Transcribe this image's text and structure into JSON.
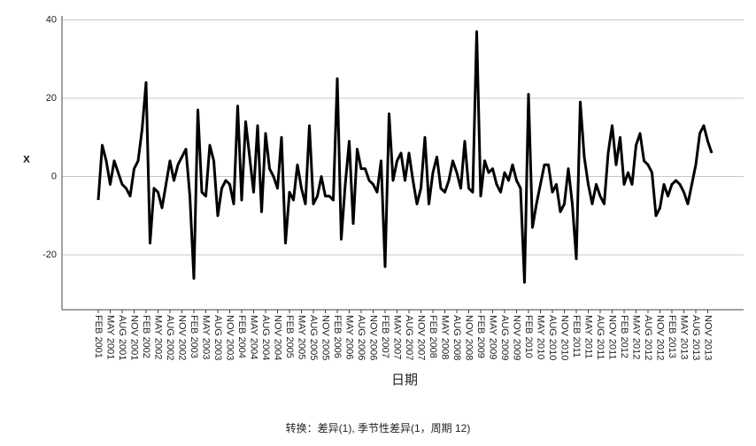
{
  "chart_data": {
    "type": "line",
    "ylabel": "x",
    "xlabel": "日期",
    "note": "转换：差异(1), 季节性差异(1，周期 12)",
    "color": "#000000",
    "grid": true,
    "ylim": [
      -34,
      41
    ],
    "yticks": [
      -20,
      0,
      20,
      40
    ],
    "categories": [
      "FEB 2001",
      null,
      null,
      "MAY 2001",
      null,
      null,
      "AUG 2001",
      null,
      null,
      "NOV 2001",
      null,
      null,
      "FEB 2002",
      null,
      null,
      "MAY 2002",
      null,
      null,
      "AUG 2002",
      null,
      null,
      "NOV 2002",
      null,
      null,
      "FEB 2003",
      null,
      null,
      "MAY 2003",
      null,
      null,
      "AUG 2003",
      null,
      null,
      "NOV 2003",
      null,
      null,
      "FEB 2004",
      null,
      null,
      "MAY 2004",
      null,
      null,
      "AUG 2004",
      null,
      null,
      "NOV 2004",
      null,
      null,
      "FEB 2005",
      null,
      null,
      "MAY 2005",
      null,
      null,
      "AUG 2005",
      null,
      null,
      "NOV 2005",
      null,
      null,
      "FEB 2006",
      null,
      null,
      "MAY 2006",
      null,
      null,
      "AUG 2006",
      null,
      null,
      "NOV 2006",
      null,
      null,
      "FEB 2007",
      null,
      null,
      "MAY 2007",
      null,
      null,
      "AUG 2007",
      null,
      null,
      "NOV 2007",
      null,
      null,
      "FEB 2008",
      null,
      null,
      "MAY 2008",
      null,
      null,
      "AUG 2008",
      null,
      null,
      "NOV 2008",
      null,
      null,
      "FEB 2009",
      null,
      null,
      "MAY 2009",
      null,
      null,
      "AUG 2009",
      null,
      null,
      "NOV 2009",
      null,
      null,
      "FEB 2010",
      null,
      null,
      "MAY 2010",
      null,
      null,
      "AUG 2010",
      null,
      null,
      "NOV 2010",
      null,
      null,
      "FEB 2011",
      null,
      null,
      "MAY 2011",
      null,
      null,
      "AUG 2011",
      null,
      null,
      "NOV 2011",
      null,
      null,
      "FEB 2012",
      null,
      null,
      "MAY 2012",
      null,
      null,
      "AUG 2012",
      null,
      null,
      "NOV 2012",
      null,
      null,
      "FEB 2013",
      null,
      null,
      "MAY 2013",
      null,
      null,
      "AUG 2013",
      null,
      null,
      "NOV 2013",
      null
    ],
    "values": [
      -6,
      8,
      4,
      -2,
      4,
      1,
      -2,
      -3,
      -5,
      2,
      4,
      12,
      24,
      -17,
      -3,
      -4,
      -8,
      -2,
      4,
      -1,
      3,
      5,
      7,
      -5,
      -26,
      17,
      -4,
      -5,
      8,
      4,
      -10,
      -3,
      -1,
      -2,
      -7,
      18,
      -6,
      14,
      5,
      -4,
      13,
      -9,
      11,
      2,
      0,
      -3,
      10,
      -17,
      -4,
      -6,
      3,
      -3,
      -7,
      13,
      -7,
      -5,
      0,
      -5,
      -5,
      -6,
      25,
      -16,
      -2,
      9,
      -12,
      7,
      2,
      2,
      -1,
      -2,
      -4,
      4,
      -23,
      16,
      -1,
      4,
      6,
      -1,
      6,
      -1,
      -7,
      -3,
      10,
      -7,
      1,
      5,
      -3,
      -4,
      -1,
      4,
      1,
      -3,
      9,
      -3,
      -4,
      37,
      -5,
      4,
      1,
      2,
      -2,
      -4,
      1,
      -1,
      3,
      -1,
      -3,
      -27,
      21,
      -13,
      -7,
      -2,
      3,
      3,
      -4,
      -2,
      -9,
      -7,
      2,
      -7,
      -21,
      19,
      5,
      -2,
      -7,
      -2,
      -5,
      -7,
      6,
      13,
      3,
      10,
      -2,
      1,
      -2,
      8,
      11,
      4,
      3,
      1,
      -10,
      -8,
      -2,
      -5,
      -2,
      -1,
      -2,
      -4,
      -7,
      -2,
      3,
      11,
      13,
      9,
      6
    ]
  }
}
